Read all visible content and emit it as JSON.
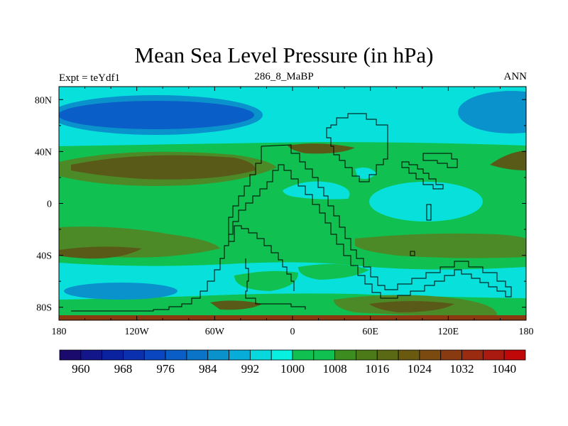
{
  "title": "Mean Sea Level Pressure (in hPa)",
  "left_label": "Expt = teYdf1",
  "center_label": "286_8_MaBP",
  "right_label": "ANN",
  "x_axis": {
    "ticks": [
      {
        "lon": -180,
        "label": "180"
      },
      {
        "lon": -120,
        "label": "120W"
      },
      {
        "lon": -60,
        "label": "60W"
      },
      {
        "lon": 0,
        "label": "0"
      },
      {
        "lon": 60,
        "label": "60E"
      },
      {
        "lon": 120,
        "label": "120E"
      },
      {
        "lon": 180,
        "label": "180"
      }
    ]
  },
  "y_axis": {
    "ticks": [
      {
        "lat": 80,
        "label": "80N"
      },
      {
        "lat": 40,
        "label": "40N"
      },
      {
        "lat": 0,
        "label": "0"
      },
      {
        "lat": -40,
        "label": "40S"
      },
      {
        "lat": -80,
        "label": "80S"
      }
    ]
  },
  "colorbar": {
    "colors": [
      "#1a0a6e",
      "#12168a",
      "#0a22a0",
      "#0a30b0",
      "#0a46c0",
      "#0a5ec8",
      "#0a74c8",
      "#0a92cc",
      "#08acd8",
      "#08d8dc",
      "#08f0e0",
      "#10c050",
      "#10c050",
      "#3c8c20",
      "#4c7a18",
      "#5a6a14",
      "#6a5a10",
      "#7a4a10",
      "#8a3a10",
      "#9a2a10",
      "#aa1a10",
      "#c00808"
    ],
    "labels": [
      {
        "text": "960",
        "index": 1
      },
      {
        "text": "968",
        "index": 3
      },
      {
        "text": "976",
        "index": 5
      },
      {
        "text": "984",
        "index": 7
      },
      {
        "text": "992",
        "index": 9
      },
      {
        "text": "1000",
        "index": 11
      },
      {
        "text": "1008",
        "index": 13
      },
      {
        "text": "1016",
        "index": 15
      },
      {
        "text": "1024",
        "index": 17
      },
      {
        "text": "1032",
        "index": 19
      },
      {
        "text": "1040",
        "index": 21
      }
    ]
  },
  "fill_colors": {
    "lowest": "#0a5ec8",
    "low": "#0a92cc",
    "mid_low": "#08e0dc",
    "mid": "#10c050",
    "high": "#4c8a28",
    "highest": "#5a5a18",
    "polar_south": "#8a3a10"
  }
}
